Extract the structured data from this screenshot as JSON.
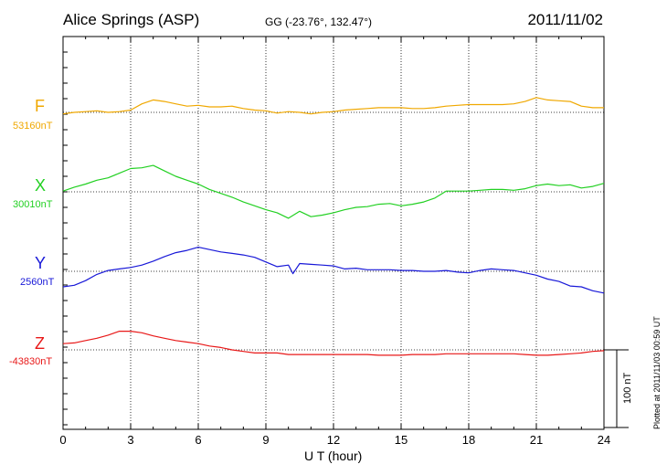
{
  "header": {
    "station": "Alice Springs (ASP)",
    "coords": "GG (-23.76°, 132.47°)",
    "date": "2011/11/02"
  },
  "side_note": "Plotted at 2011/11/03 00:59 UT",
  "scale_label": "100 nT",
  "chart_data": {
    "type": "line",
    "xlabel": "U T (hour)",
    "xlim": [
      0,
      24
    ],
    "xticks": [
      "0",
      "3",
      "6",
      "9",
      "12",
      "15",
      "18",
      "21",
      "24"
    ],
    "scale_bar_nT": 100,
    "grid": true,
    "series": [
      {
        "name": "F",
        "baseline_label": "53160nT",
        "baseline_nT": 53160,
        "color": "#f0a800",
        "x": [
          0,
          0.5,
          1,
          1.5,
          2,
          2.5,
          3,
          3.5,
          4,
          4.5,
          5,
          5.5,
          6,
          6.5,
          7,
          7.5,
          8,
          8.5,
          9,
          9.5,
          10,
          10.5,
          11,
          11.5,
          12,
          12.5,
          13,
          13.5,
          14,
          14.5,
          15,
          15.5,
          16,
          16.5,
          17,
          17.5,
          18,
          18.5,
          19,
          19.5,
          20,
          20.5,
          21,
          21.5,
          22,
          22.5,
          23,
          23.5,
          24
        ],
        "values": [
          53158,
          53160,
          53161,
          53162,
          53160,
          53161,
          53163,
          53171,
          53176,
          53174,
          53171,
          53168,
          53169,
          53167,
          53167,
          53168,
          53165,
          53163,
          53162,
          53159,
          53161,
          53160,
          53158,
          53160,
          53161,
          53163,
          53164,
          53165,
          53166,
          53166,
          53166,
          53165,
          53165,
          53166,
          53168,
          53169,
          53170,
          53170,
          53170,
          53170,
          53171,
          53174,
          53179,
          53176,
          53175,
          53174,
          53168,
          53166,
          53166
        ]
      },
      {
        "name": "X",
        "baseline_label": "30010nT",
        "baseline_nT": 30010,
        "color": "#22d022",
        "x": [
          0,
          0.5,
          1,
          1.5,
          2,
          2.5,
          3,
          3.5,
          4,
          4.5,
          5,
          5.5,
          6,
          6.5,
          7,
          7.5,
          8,
          8.5,
          9,
          9.5,
          10,
          10.5,
          11,
          11.5,
          12,
          12.5,
          13,
          13.5,
          14,
          14.5,
          15,
          15.5,
          16,
          16.5,
          17,
          17.5,
          18,
          18.5,
          19,
          19.5,
          20,
          20.5,
          21,
          21.5,
          22,
          22.5,
          23,
          23.5,
          24
        ],
        "values": [
          30011,
          30016,
          30020,
          30025,
          30028,
          30034,
          30040,
          30041,
          30044,
          30037,
          30030,
          30025,
          30020,
          30013,
          30008,
          30003,
          29997,
          29992,
          29987,
          29983,
          29976,
          29985,
          29978,
          29980,
          29983,
          29987,
          29990,
          29991,
          29994,
          29995,
          29992,
          29994,
          29997,
          30002,
          30011,
          30011,
          30011,
          30012,
          30013,
          30013,
          30012,
          30014,
          30018,
          30020,
          30018,
          30019,
          30015,
          30017,
          30021
        ]
      },
      {
        "name": "Y",
        "baseline_label": "2560nT",
        "baseline_nT": 2560,
        "color": "#1818d8",
        "x": [
          0,
          0.5,
          1,
          1.5,
          2,
          2.5,
          3,
          3.5,
          4,
          4.5,
          5,
          5.5,
          6,
          6.5,
          7,
          7.5,
          8,
          8.5,
          9,
          9.5,
          10,
          10.2,
          10.5,
          11,
          11.5,
          12,
          12.5,
          13,
          13.5,
          14,
          14.5,
          15,
          15.5,
          16,
          16.5,
          17,
          17.5,
          18,
          18.5,
          19,
          19.5,
          20,
          20.5,
          21,
          21.5,
          22,
          22.5,
          23,
          23.5,
          24
        ],
        "values": [
          2540,
          2542,
          2548,
          2556,
          2561,
          2563,
          2565,
          2568,
          2573,
          2579,
          2584,
          2587,
          2591,
          2588,
          2585,
          2583,
          2581,
          2578,
          2572,
          2566,
          2568,
          2557,
          2570,
          2569,
          2568,
          2567,
          2563,
          2564,
          2562,
          2562,
          2562,
          2561,
          2561,
          2560,
          2560,
          2561,
          2559,
          2558,
          2561,
          2563,
          2562,
          2561,
          2558,
          2555,
          2550,
          2547,
          2541,
          2540,
          2535,
          2532
        ]
      },
      {
        "name": "Z",
        "baseline_label": "-43830nT",
        "baseline_nT": -43830,
        "color": "#e81818",
        "x": [
          0,
          0.5,
          1,
          1.5,
          2,
          2.5,
          3,
          3.5,
          4,
          4.5,
          5,
          5.5,
          6,
          6.5,
          7,
          7.5,
          8,
          8.5,
          9,
          9.5,
          10,
          10.5,
          11,
          11.5,
          12,
          12.5,
          13,
          13.5,
          14,
          14.5,
          15,
          15.5,
          16,
          16.5,
          17,
          17.5,
          18,
          18.5,
          19,
          19.5,
          20,
          20.5,
          21,
          21.5,
          22,
          22.5,
          23,
          23.5,
          24
        ],
        "values": [
          -43822,
          -43821,
          -43818,
          -43815,
          -43811,
          -43806,
          -43806,
          -43808,
          -43812,
          -43815,
          -43818,
          -43820,
          -43822,
          -43825,
          -43827,
          -43830,
          -43832,
          -43834,
          -43834,
          -43834,
          -43836,
          -43836,
          -43836,
          -43836,
          -43836,
          -43836,
          -43836,
          -43836,
          -43837,
          -43837,
          -43837,
          -43836,
          -43836,
          -43836,
          -43835,
          -43835,
          -43835,
          -43835,
          -43835,
          -43835,
          -43835,
          -43836,
          -43837,
          -43837,
          -43836,
          -43835,
          -43834,
          -43832,
          -43831
        ]
      }
    ]
  }
}
